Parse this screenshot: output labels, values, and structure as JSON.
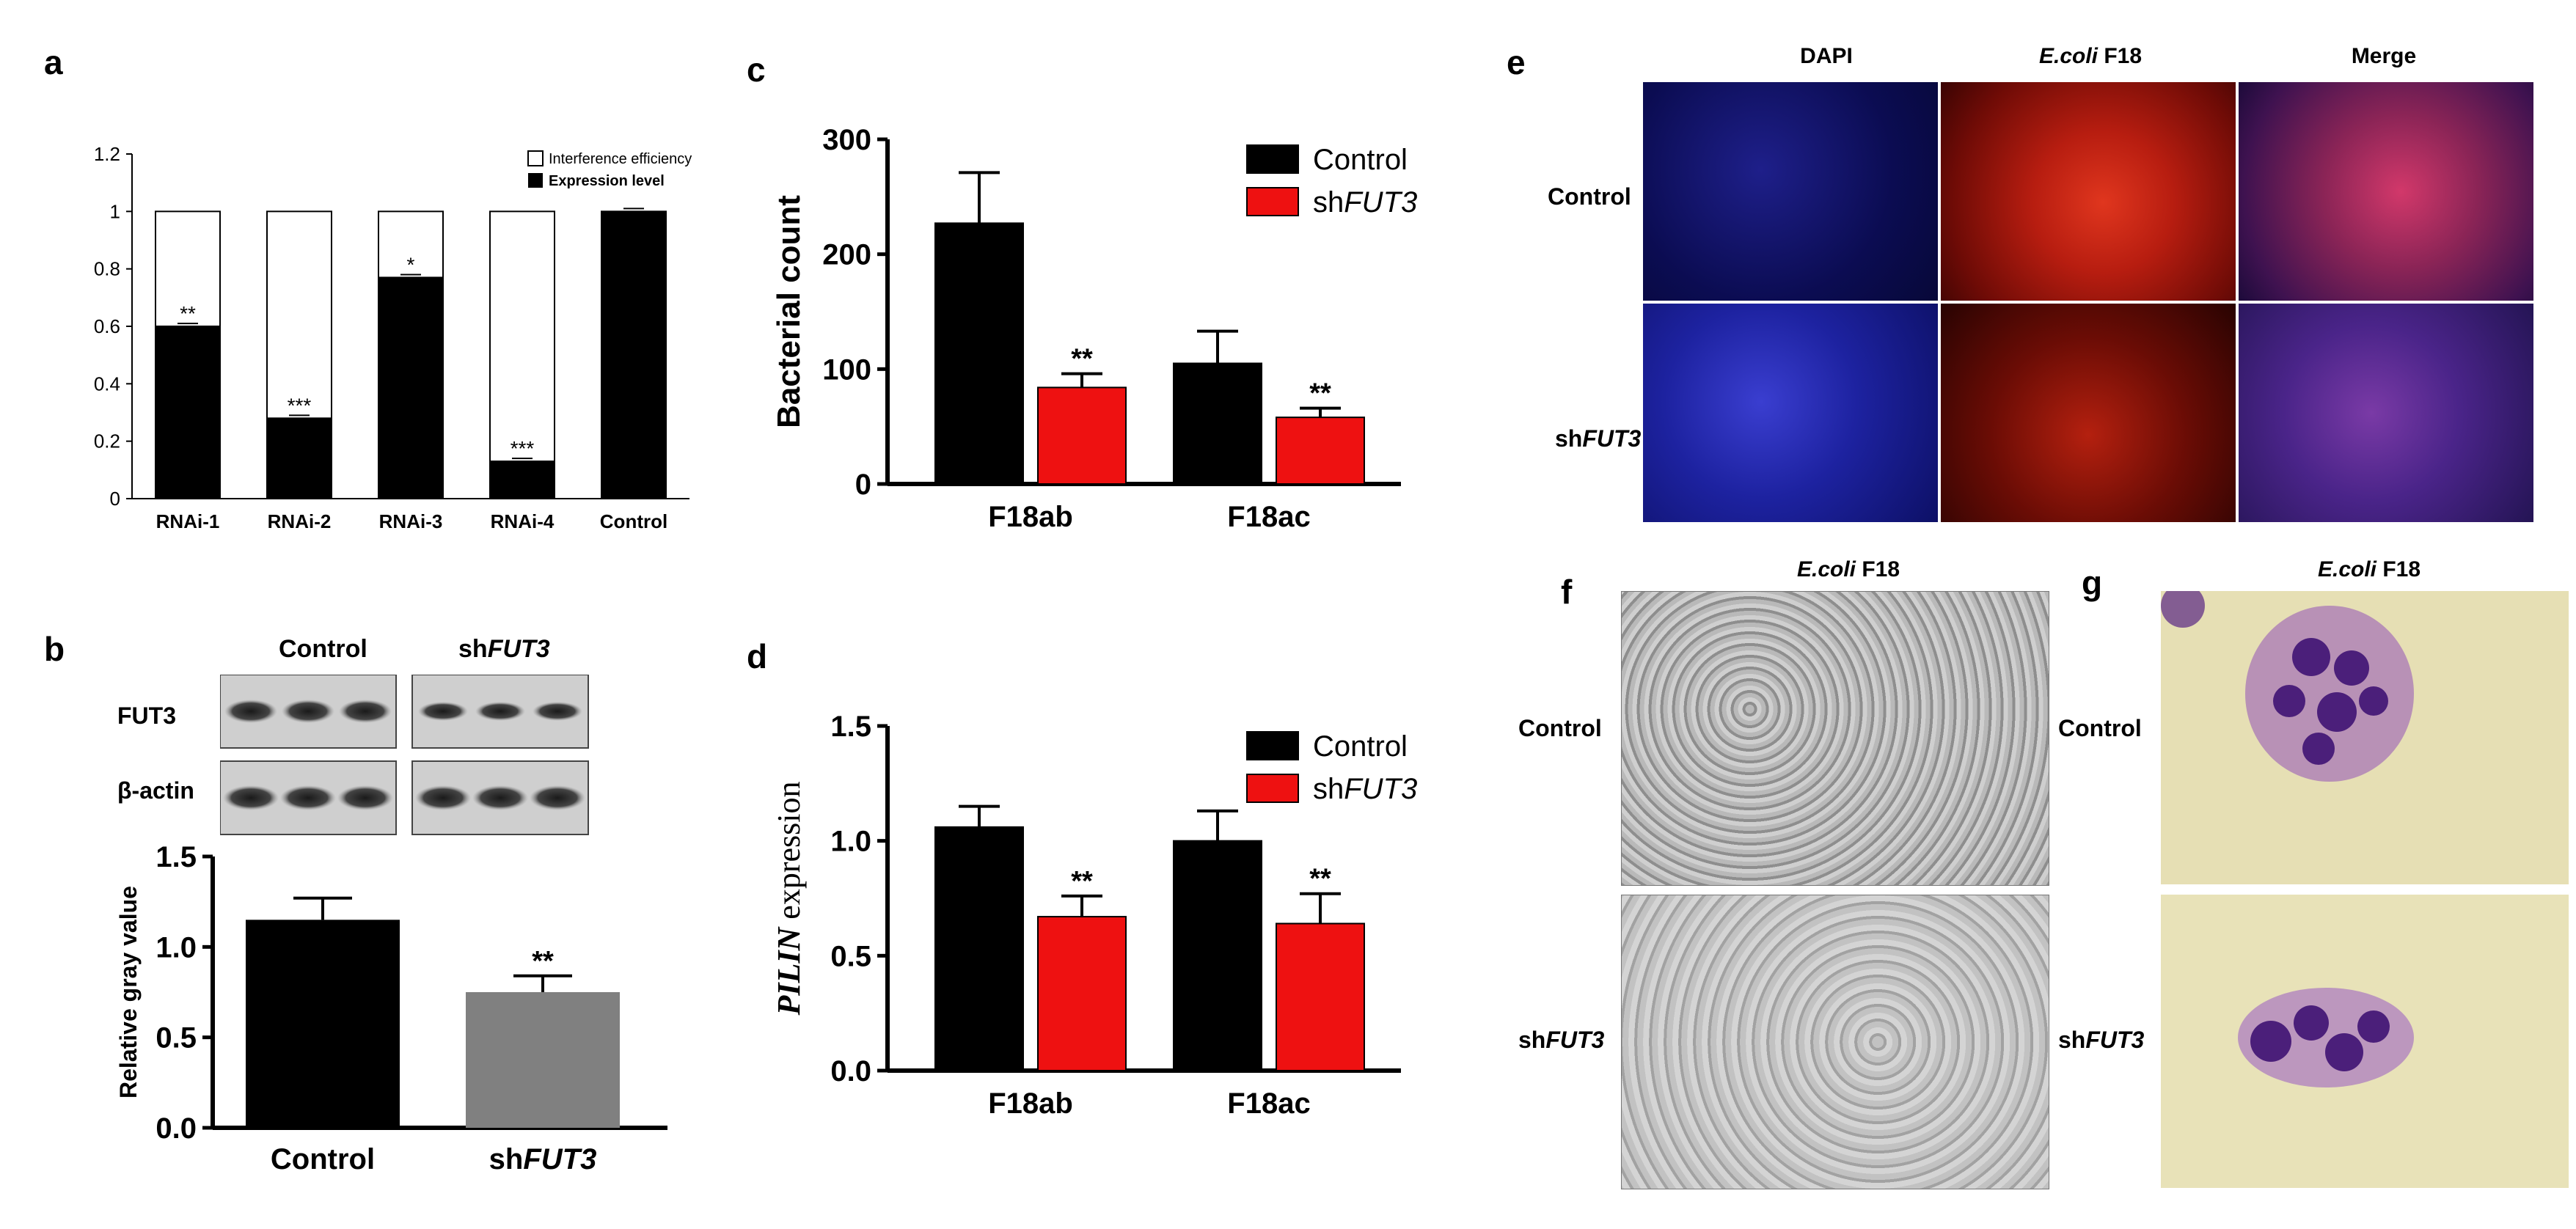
{
  "panel_labels": {
    "a": "a",
    "b": "b",
    "c": "c",
    "d": "d",
    "e": "e",
    "f": "f",
    "g": "g"
  },
  "chart_data": [
    {
      "id": "a",
      "type": "bar",
      "stacked": true,
      "categories": [
        "RNAi-1",
        "RNAi-2",
        "RNAi-3",
        "RNAi-4",
        "Control"
      ],
      "series": [
        {
          "name": "Expression level",
          "values": [
            0.6,
            0.28,
            0.77,
            0.13,
            1.0
          ],
          "color": "#000000",
          "errors": [
            0.01,
            0.01,
            0.01,
            0.01,
            0.01
          ]
        },
        {
          "name": "Interference efficiency",
          "values": [
            0.4,
            0.72,
            0.23,
            0.87,
            0.0
          ],
          "color": "#ffffff"
        }
      ],
      "significance": [
        "**",
        "***",
        "*",
        "***",
        ""
      ],
      "yticks": [
        "0",
        "0.2",
        "0.4",
        "0.6",
        "0.8",
        "1",
        "1.2"
      ],
      "ylim": [
        0,
        1.2
      ],
      "legend_position": "top-right"
    },
    {
      "id": "b",
      "type": "bar",
      "categories": [
        "Control",
        "shFUT3"
      ],
      "category_parts": [
        [
          "Control",
          ""
        ],
        [
          "sh",
          "FUT3"
        ]
      ],
      "values": [
        1.15,
        0.75
      ],
      "errors": [
        0.12,
        0.09
      ],
      "colors": [
        "#000000",
        "#808080"
      ],
      "significance": [
        "",
        "**"
      ],
      "ylabel": "Relative gray value",
      "yticks": [
        "0.0",
        "0.5",
        "1.0",
        "1.5"
      ],
      "ylim": [
        0,
        1.5
      ]
    },
    {
      "id": "c",
      "type": "bar",
      "categories": [
        "F18ab",
        "F18ac"
      ],
      "series": [
        {
          "name": "Control",
          "name_parts": [
            "Control",
            ""
          ],
          "values": [
            227,
            105
          ],
          "errors": [
            44,
            28
          ],
          "color": "#000000"
        },
        {
          "name": "shFUT3",
          "name_parts": [
            "sh",
            "FUT3"
          ],
          "values": [
            84,
            58
          ],
          "errors": [
            12,
            8
          ],
          "color": "#ee1111"
        }
      ],
      "significance": [
        [
          "",
          ""
        ],
        [
          "**",
          "**"
        ]
      ],
      "ylabel": "Bacterial count",
      "yticks": [
        "0",
        "100",
        "200",
        "300"
      ],
      "ylim": [
        0,
        300
      ],
      "legend_position": "top-right"
    },
    {
      "id": "d",
      "type": "bar",
      "categories": [
        "F18ab",
        "F18ac"
      ],
      "series": [
        {
          "name": "Control",
          "name_parts": [
            "Control",
            ""
          ],
          "values": [
            1.06,
            1.0
          ],
          "errors": [
            0.09,
            0.13
          ],
          "color": "#000000"
        },
        {
          "name": "shFUT3",
          "name_parts": [
            "sh",
            "FUT3"
          ],
          "values": [
            0.67,
            0.64
          ],
          "errors": [
            0.09,
            0.13
          ],
          "color": "#ee1111"
        }
      ],
      "significance": [
        [
          "",
          ""
        ],
        [
          "**",
          "**"
        ]
      ],
      "ylabel_parts": [
        "PILIN",
        " expression"
      ],
      "yticks": [
        "0.0",
        "0.5",
        "1.0",
        "1.5"
      ],
      "ylim": [
        0,
        1.5
      ],
      "legend_position": "top-right"
    }
  ],
  "blot": {
    "group_labels": [
      [
        "Control",
        ""
      ],
      [
        "sh",
        "FUT3"
      ]
    ],
    "rows": [
      "FUT3",
      "β-actin"
    ]
  },
  "panel_e": {
    "columns": [
      [
        "",
        "DAPI"
      ],
      [
        "E.coli",
        " F18"
      ],
      [
        "",
        "Merge"
      ]
    ],
    "rows": [
      [
        "Control",
        ""
      ],
      [
        "sh",
        "FUT3"
      ]
    ]
  },
  "panel_f": {
    "title_parts": [
      "E.coli",
      " F18"
    ],
    "rows": [
      [
        "Control",
        ""
      ],
      [
        "sh",
        "FUT3"
      ]
    ]
  },
  "panel_g": {
    "title_parts": [
      "E.coli",
      " F18"
    ],
    "rows": [
      [
        "Control",
        ""
      ],
      [
        "sh",
        "FUT3"
      ]
    ]
  }
}
